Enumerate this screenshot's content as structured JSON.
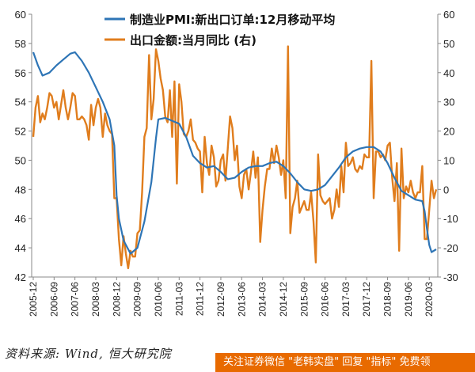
{
  "chart_data": {
    "type": "line",
    "x_ticks": [
      "2005-12",
      "2006-09",
      "2007-06",
      "2008-03",
      "2008-12",
      "2009-09",
      "2010-06",
      "2011-03",
      "2011-12",
      "2012-09",
      "2013-06",
      "2014-03",
      "2014-12",
      "2015-09",
      "2016-06",
      "2017-03",
      "2017-12",
      "2018-09",
      "2019-06",
      "2020-03"
    ],
    "y_left": {
      "min": 42,
      "max": 60,
      "ticks": [
        42,
        44,
        46,
        48,
        50,
        52,
        54,
        56,
        58,
        60
      ]
    },
    "y_right": {
      "min": -30,
      "max": 60,
      "ticks": [
        -30,
        -20,
        -10,
        0,
        10,
        20,
        30,
        40,
        50,
        60
      ]
    },
    "grid": false,
    "legend_position": "top",
    "series": [
      {
        "name": "制造业PMI:新出口订单:12月移动平均",
        "axis": "left",
        "color": "#2e75b6",
        "points": [
          [
            "2005-12",
            57.4
          ],
          [
            "2006-02",
            56.5
          ],
          [
            "2006-04",
            55.8
          ],
          [
            "2006-07",
            56.0
          ],
          [
            "2006-10",
            56.5
          ],
          [
            "2007-01",
            56.9
          ],
          [
            "2007-04",
            57.3
          ],
          [
            "2007-06",
            57.4
          ],
          [
            "2007-09",
            56.8
          ],
          [
            "2007-12",
            56.0
          ],
          [
            "2008-03",
            55.0
          ],
          [
            "2008-06",
            54.0
          ],
          [
            "2008-09",
            52.8
          ],
          [
            "2008-11",
            51.0
          ],
          [
            "2008-12",
            47.6
          ],
          [
            "2009-01",
            46.0
          ],
          [
            "2009-03",
            44.5
          ],
          [
            "2009-06",
            43.6
          ],
          [
            "2009-09",
            44.0
          ],
          [
            "2009-12",
            45.8
          ],
          [
            "2010-03",
            48.5
          ],
          [
            "2010-05",
            51.5
          ],
          [
            "2010-06",
            52.8
          ],
          [
            "2010-09",
            52.9
          ],
          [
            "2010-12",
            52.7
          ],
          [
            "2011-03",
            52.5
          ],
          [
            "2011-06",
            51.6
          ],
          [
            "2011-09",
            50.3
          ],
          [
            "2011-12",
            49.8
          ],
          [
            "2012-03",
            49.5
          ],
          [
            "2012-06",
            49.6
          ],
          [
            "2012-09",
            49.2
          ],
          [
            "2012-12",
            48.7
          ],
          [
            "2013-03",
            48.8
          ],
          [
            "2013-06",
            49.2
          ],
          [
            "2013-09",
            49.5
          ],
          [
            "2013-12",
            49.6
          ],
          [
            "2014-03",
            49.6
          ],
          [
            "2014-06",
            49.8
          ],
          [
            "2014-09",
            49.9
          ],
          [
            "2014-12",
            49.6
          ],
          [
            "2015-03",
            49.1
          ],
          [
            "2015-06",
            48.5
          ],
          [
            "2015-09",
            48.0
          ],
          [
            "2015-12",
            47.9
          ],
          [
            "2016-03",
            48.0
          ],
          [
            "2016-06",
            48.3
          ],
          [
            "2016-09",
            48.9
          ],
          [
            "2016-12",
            49.5
          ],
          [
            "2017-03",
            50.2
          ],
          [
            "2017-06",
            50.6
          ],
          [
            "2017-09",
            50.8
          ],
          [
            "2017-12",
            50.9
          ],
          [
            "2018-03",
            50.9
          ],
          [
            "2018-06",
            50.6
          ],
          [
            "2018-09",
            49.8
          ],
          [
            "2018-12",
            48.8
          ],
          [
            "2019-03",
            47.9
          ],
          [
            "2019-06",
            47.6
          ],
          [
            "2019-09",
            47.3
          ],
          [
            "2019-12",
            47.2
          ],
          [
            "2020-01",
            46.5
          ],
          [
            "2020-02",
            45.3
          ],
          [
            "2020-03",
            44.2
          ],
          [
            "2020-04",
            43.7
          ],
          [
            "2020-06",
            43.9
          ]
        ]
      },
      {
        "name": "出口金额:当月同比 (右)",
        "axis": "right",
        "color": "#e07d1d",
        "points": [
          [
            "2005-12",
            18
          ],
          [
            "2006-01",
            28
          ],
          [
            "2006-02",
            32
          ],
          [
            "2006-03",
            23
          ],
          [
            "2006-04",
            26
          ],
          [
            "2006-05",
            24
          ],
          [
            "2006-06",
            28
          ],
          [
            "2006-07",
            33
          ],
          [
            "2006-08",
            32
          ],
          [
            "2006-09",
            28
          ],
          [
            "2006-10",
            30
          ],
          [
            "2006-11",
            24
          ],
          [
            "2006-12",
            29
          ],
          [
            "2007-01",
            34
          ],
          [
            "2007-02",
            28
          ],
          [
            "2007-03",
            24
          ],
          [
            "2007-04",
            28
          ],
          [
            "2007-05",
            33
          ],
          [
            "2007-06",
            32
          ],
          [
            "2007-07",
            24
          ],
          [
            "2007-08",
            24
          ],
          [
            "2007-09",
            25
          ],
          [
            "2007-10",
            24
          ],
          [
            "2007-11",
            22
          ],
          [
            "2007-12",
            17
          ],
          [
            "2008-01",
            29
          ],
          [
            "2008-02",
            22
          ],
          [
            "2008-03",
            28
          ],
          [
            "2008-04",
            31
          ],
          [
            "2008-05",
            28
          ],
          [
            "2008-06",
            18
          ],
          [
            "2008-07",
            26
          ],
          [
            "2008-08",
            22
          ],
          [
            "2008-09",
            20
          ],
          [
            "2008-10",
            19
          ],
          [
            "2008-11",
            -3
          ],
          [
            "2008-12",
            -3
          ],
          [
            "2009-01",
            -17
          ],
          [
            "2009-02",
            -26
          ],
          [
            "2009-03",
            -16
          ],
          [
            "2009-04",
            -22
          ],
          [
            "2009-05",
            -27
          ],
          [
            "2009-06",
            -21
          ],
          [
            "2009-07",
            -23
          ],
          [
            "2009-08",
            -23
          ],
          [
            "2009-09",
            -15
          ],
          [
            "2009-10",
            -14
          ],
          [
            "2009-11",
            -1
          ],
          [
            "2009-12",
            18
          ],
          [
            "2010-01",
            21
          ],
          [
            "2010-02",
            46
          ],
          [
            "2010-03",
            24
          ],
          [
            "2010-04",
            31
          ],
          [
            "2010-05",
            48
          ],
          [
            "2010-06",
            44
          ],
          [
            "2010-07",
            38
          ],
          [
            "2010-08",
            34
          ],
          [
            "2010-09",
            25
          ],
          [
            "2010-10",
            23
          ],
          [
            "2010-11",
            34
          ],
          [
            "2010-12",
            18
          ],
          [
            "2011-01",
            37
          ],
          [
            "2011-02",
            2
          ],
          [
            "2011-03",
            36
          ],
          [
            "2011-04",
            30
          ],
          [
            "2011-05",
            19
          ],
          [
            "2011-06",
            18
          ],
          [
            "2011-07",
            20
          ],
          [
            "2011-08",
            24
          ],
          [
            "2011-09",
            17
          ],
          [
            "2011-10",
            16
          ],
          [
            "2011-11",
            14
          ],
          [
            "2011-12",
            13
          ],
          [
            "2012-01",
            -1
          ],
          [
            "2012-02",
            18
          ],
          [
            "2012-03",
            9
          ],
          [
            "2012-04",
            5
          ],
          [
            "2012-05",
            15
          ],
          [
            "2012-06",
            11
          ],
          [
            "2012-07",
            1
          ],
          [
            "2012-08",
            3
          ],
          [
            "2012-09",
            10
          ],
          [
            "2012-10",
            12
          ],
          [
            "2012-11",
            3
          ],
          [
            "2012-12",
            14
          ],
          [
            "2013-01",
            25
          ],
          [
            "2013-02",
            21
          ],
          [
            "2013-03",
            10
          ],
          [
            "2013-04",
            15
          ],
          [
            "2013-05",
            1
          ],
          [
            "2013-06",
            -3
          ],
          [
            "2013-07",
            5
          ],
          [
            "2013-08",
            7
          ],
          [
            "2013-09",
            0
          ],
          [
            "2013-10",
            6
          ],
          [
            "2013-11",
            13
          ],
          [
            "2013-12",
            4
          ],
          [
            "2014-01",
            11
          ],
          [
            "2014-02",
            -18
          ],
          [
            "2014-03",
            -7
          ],
          [
            "2014-04",
            1
          ],
          [
            "2014-05",
            7
          ],
          [
            "2014-06",
            7
          ],
          [
            "2014-07",
            14
          ],
          [
            "2014-08",
            9
          ],
          [
            "2014-09",
            15
          ],
          [
            "2014-10",
            11
          ],
          [
            "2014-11",
            5
          ],
          [
            "2014-12",
            10
          ],
          [
            "2015-01",
            -3
          ],
          [
            "2015-02",
            49
          ],
          [
            "2015-03",
            -15
          ],
          [
            "2015-04",
            -6
          ],
          [
            "2015-05",
            -3
          ],
          [
            "2015-06",
            3
          ],
          [
            "2015-07",
            -8
          ],
          [
            "2015-08",
            -6
          ],
          [
            "2015-09",
            -4
          ],
          [
            "2015-10",
            -7
          ],
          [
            "2015-11",
            -7
          ],
          [
            "2015-12",
            -1
          ],
          [
            "2016-01",
            -11
          ],
          [
            "2016-02",
            -25
          ],
          [
            "2016-03",
            12
          ],
          [
            "2016-04",
            -2
          ],
          [
            "2016-05",
            -4
          ],
          [
            "2016-06",
            -5
          ],
          [
            "2016-07",
            -4
          ],
          [
            "2016-08",
            -3
          ],
          [
            "2016-09",
            -10
          ],
          [
            "2016-10",
            -7
          ],
          [
            "2016-11",
            0
          ],
          [
            "2016-12",
            -6
          ],
          [
            "2017-01",
            8
          ],
          [
            "2017-02",
            -1
          ],
          [
            "2017-03",
            16
          ],
          [
            "2017-04",
            8
          ],
          [
            "2017-05",
            9
          ],
          [
            "2017-06",
            11
          ],
          [
            "2017-07",
            7
          ],
          [
            "2017-08",
            6
          ],
          [
            "2017-09",
            8
          ],
          [
            "2017-10",
            7
          ],
          [
            "2017-11",
            12
          ],
          [
            "2017-12",
            11
          ],
          [
            "2018-01",
            11
          ],
          [
            "2018-02",
            44
          ],
          [
            "2018-03",
            -3
          ],
          [
            "2018-04",
            13
          ],
          [
            "2018-05",
            13
          ],
          [
            "2018-06",
            11
          ],
          [
            "2018-07",
            12
          ],
          [
            "2018-08",
            10
          ],
          [
            "2018-09",
            15
          ],
          [
            "2018-10",
            16
          ],
          [
            "2018-11",
            4
          ],
          [
            "2018-12",
            -4
          ],
          [
            "2019-01",
            9
          ],
          [
            "2019-02",
            -21
          ],
          [
            "2019-03",
            14
          ],
          [
            "2019-04",
            -3
          ],
          [
            "2019-05",
            1
          ],
          [
            "2019-06",
            -1
          ],
          [
            "2019-07",
            3
          ],
          [
            "2019-08",
            -1
          ],
          [
            "2019-09",
            -3
          ],
          [
            "2019-10",
            -1
          ],
          [
            "2019-11",
            -1
          ],
          [
            "2019-12",
            8
          ],
          [
            "2020-01",
            -17
          ],
          [
            "2020-02",
            -17
          ],
          [
            "2020-03",
            -7
          ],
          [
            "2020-04",
            3
          ],
          [
            "2020-05",
            -3
          ],
          [
            "2020-06",
            0
          ]
        ]
      }
    ]
  },
  "source_text": "资料来源: Wind, 恒大研究院",
  "banner_text": "关注证券微信 \"老韩实盘\" 回复 \"指标\" 免费领"
}
